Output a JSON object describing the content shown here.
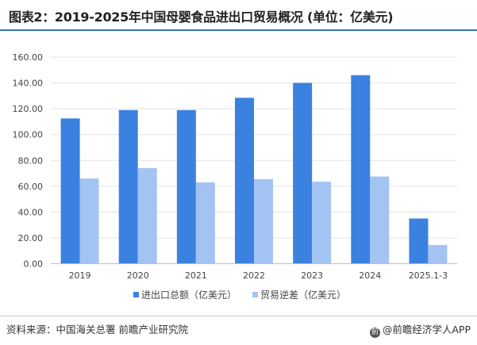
{
  "title": "图表2：2019-2025年中国母婴食品进出口贸易概况 (单位：亿美元)",
  "source": "资料来源：中国海关总署 前瞻产业研究院",
  "brand": "@前瞻经济学人APP",
  "colors": {
    "series1": "#3b82e0",
    "series2": "#a3c4f3",
    "title_rule": "#3a6fc4"
  },
  "chart_data": {
    "type": "bar",
    "categories": [
      "2019",
      "2020",
      "2021",
      "2022",
      "2023",
      "2024",
      "2025.1-3"
    ],
    "series": [
      {
        "name": "进出口总额（亿美元）",
        "values": [
          112.5,
          119,
          119,
          128.5,
          140,
          146,
          35
        ]
      },
      {
        "name": "贸易逆差（亿美元）",
        "values": [
          66,
          74,
          63,
          65.5,
          63.5,
          67.5,
          14.5
        ]
      }
    ],
    "yticks": [
      "0.00",
      "20.00",
      "40.00",
      "60.00",
      "80.00",
      "100.00",
      "120.00",
      "140.00",
      "160.00"
    ],
    "ylim": [
      0,
      160
    ],
    "grid": true,
    "legend_position": "bottom"
  }
}
